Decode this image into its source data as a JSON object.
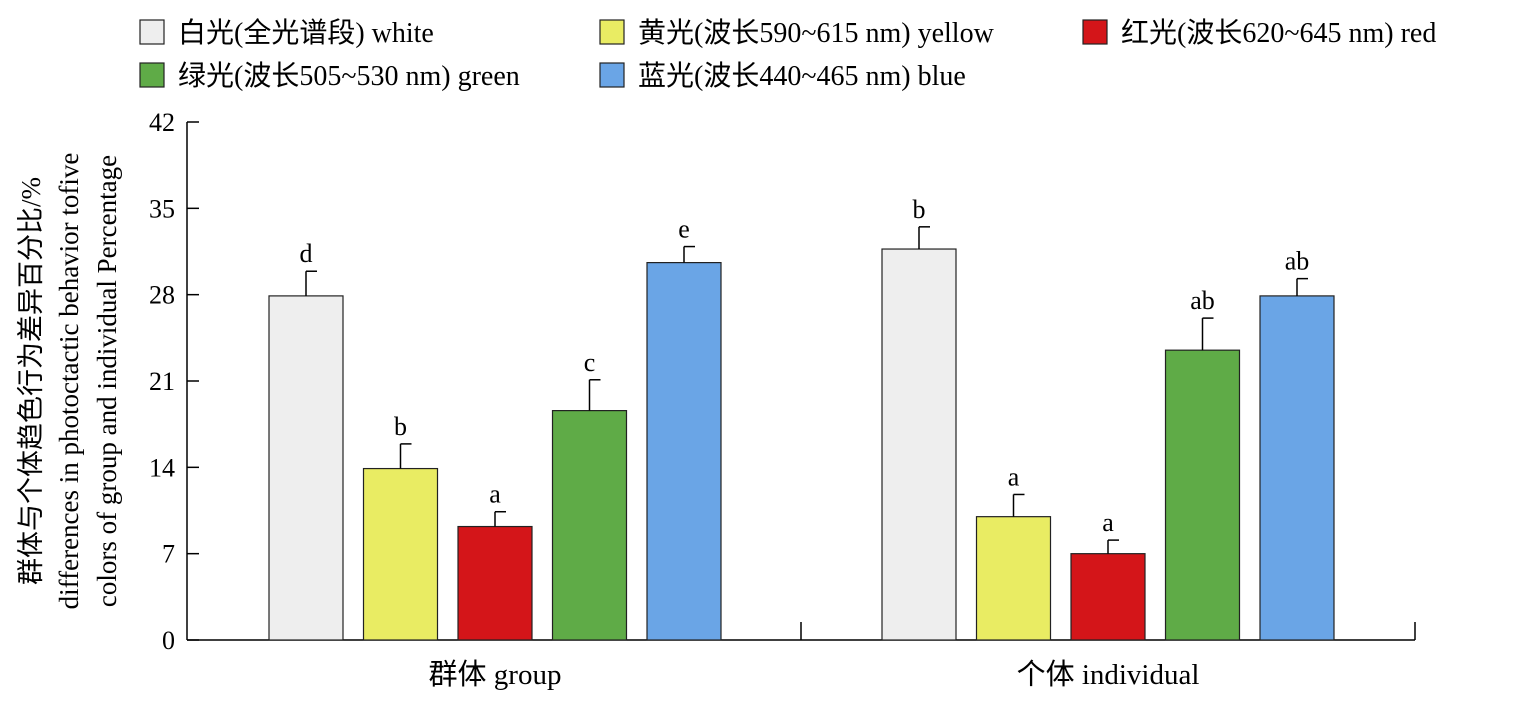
{
  "chart_data": {
    "type": "bar",
    "categories": [
      "群体 group",
      "个体 individual"
    ],
    "ylabel_lines": [
      "群体与个体趋色行为差异百分比/%",
      "differences in photoctactic behavior tofive",
      "colors of group and individual Percentage"
    ],
    "ylim": [
      0,
      42
    ],
    "yticks": [
      0,
      7,
      14,
      21,
      28,
      35,
      42
    ],
    "grid": false,
    "legend_position": "top",
    "series": [
      {
        "name": "白光(全光谱段) white",
        "color": "#eeeeee",
        "values": [
          27.9,
          31.7
        ],
        "errors": [
          2.0,
          1.8
        ],
        "labels": [
          "d",
          "b"
        ]
      },
      {
        "name": "黄光(波长590~615 nm) yellow",
        "color": "#e9ec63",
        "values": [
          13.9,
          10.0
        ],
        "errors": [
          2.0,
          1.8
        ],
        "labels": [
          "b",
          "a"
        ]
      },
      {
        "name": "红光(波长620~645 nm) red",
        "color": "#d41519",
        "values": [
          9.2,
          7.0
        ],
        "errors": [
          1.2,
          1.1
        ],
        "labels": [
          "a",
          "a"
        ]
      },
      {
        "name": "绿光(波长505~530 nm) green",
        "color": "#5fab47",
        "values": [
          18.6,
          23.5
        ],
        "errors": [
          2.5,
          2.6
        ],
        "labels": [
          "c",
          "ab"
        ]
      },
      {
        "name": "蓝光(波长440~465 nm) blue",
        "color": "#6aa5e6",
        "values": [
          30.6,
          27.9
        ],
        "errors": [
          1.3,
          1.4
        ],
        "labels": [
          "e",
          "ab"
        ]
      }
    ]
  }
}
